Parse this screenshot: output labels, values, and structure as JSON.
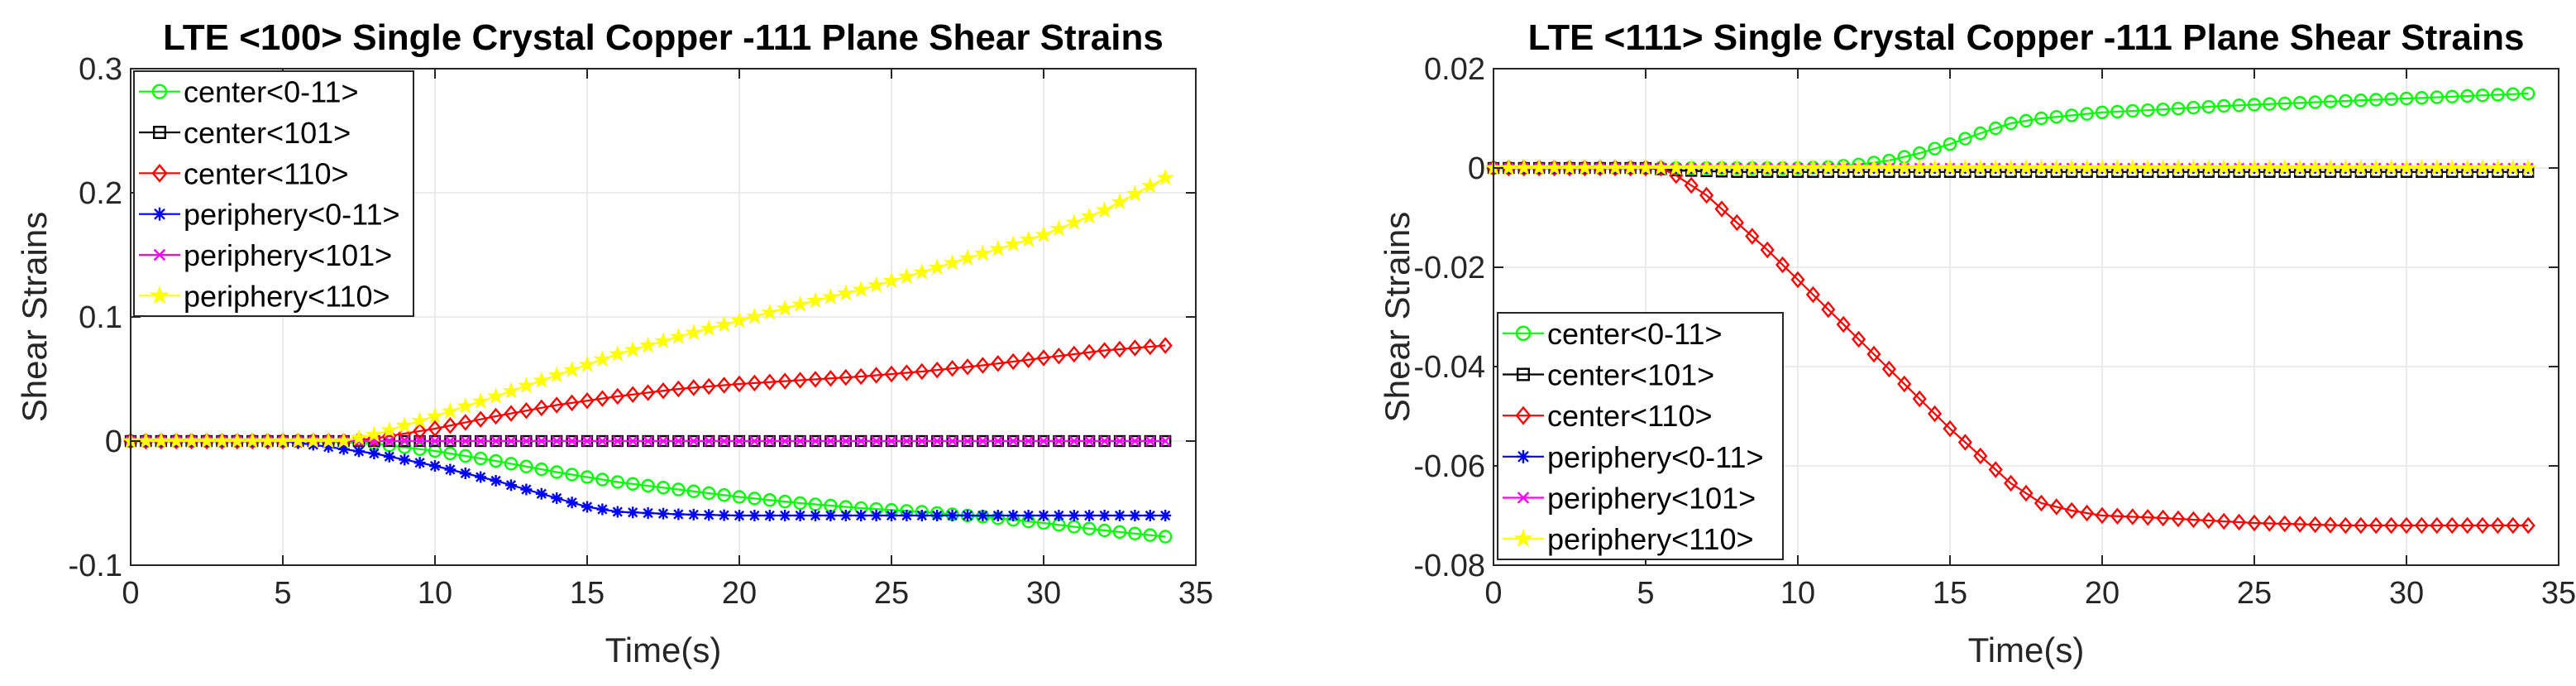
{
  "chart_data": [
    {
      "type": "line",
      "title": "LTE <100> Single Crystal Copper -111 Plane Shear Strains",
      "xlabel": "Time(s)",
      "ylabel": "Shear Strains",
      "xlim": [
        0,
        35
      ],
      "ylim": [
        -0.1,
        0.3
      ],
      "xticks": [
        0,
        5,
        10,
        15,
        20,
        25,
        30,
        35
      ],
      "xtick_labels": [
        "0",
        "5",
        "10",
        "15",
        "20",
        "25",
        "30",
        "35"
      ],
      "yticks": [
        -0.1,
        0,
        0.1,
        0.2,
        0.3
      ],
      "ytick_labels": [
        "-0.1",
        "0",
        "0.1",
        "0.2",
        "0.3"
      ],
      "grid": true,
      "legend_position": "top-left",
      "x": [
        0,
        34
      ],
      "series": [
        {
          "name": "center<0-11>",
          "color": "#00ff00",
          "marker": "circle",
          "points": [
            [
              0,
              0
            ],
            [
              6,
              0
            ],
            [
              8,
              -0.002
            ],
            [
              10,
              -0.008
            ],
            [
              12,
              -0.016
            ],
            [
              14,
              -0.025
            ],
            [
              16,
              -0.033
            ],
            [
              18,
              -0.039
            ],
            [
              20,
              -0.045
            ],
            [
              22,
              -0.05
            ],
            [
              24,
              -0.054
            ],
            [
              26,
              -0.057
            ],
            [
              28,
              -0.061
            ],
            [
              30,
              -0.066
            ],
            [
              32,
              -0.072
            ],
            [
              34,
              -0.077
            ]
          ]
        },
        {
          "name": "center<101>",
          "color": "#000000",
          "marker": "square",
          "points": [
            [
              0,
              0
            ],
            [
              34,
              0
            ]
          ]
        },
        {
          "name": "center<110>",
          "color": "#ff0000",
          "marker": "diamond",
          "points": [
            [
              0,
              0
            ],
            [
              7,
              0
            ],
            [
              8,
              0.002
            ],
            [
              10,
              0.01
            ],
            [
              12,
              0.02
            ],
            [
              14,
              0.029
            ],
            [
              16,
              0.036
            ],
            [
              18,
              0.042
            ],
            [
              20,
              0.046
            ],
            [
              22,
              0.049
            ],
            [
              24,
              0.052
            ],
            [
              26,
              0.056
            ],
            [
              28,
              0.061
            ],
            [
              30,
              0.067
            ],
            [
              32,
              0.073
            ],
            [
              34,
              0.077
            ]
          ]
        },
        {
          "name": "periphery<0-11>",
          "color": "#0000ff",
          "marker": "asterisk",
          "points": [
            [
              0,
              0
            ],
            [
              5,
              0
            ],
            [
              6,
              -0.003
            ],
            [
              8,
              -0.01
            ],
            [
              10,
              -0.02
            ],
            [
              12,
              -0.032
            ],
            [
              14,
              -0.046
            ],
            [
              15,
              -0.053
            ],
            [
              16,
              -0.057
            ],
            [
              18,
              -0.059
            ],
            [
              20,
              -0.06
            ],
            [
              34,
              -0.06
            ]
          ]
        },
        {
          "name": "periphery<101>",
          "color": "#ff00ff",
          "marker": "cross",
          "points": [
            [
              0,
              0
            ],
            [
              34,
              0
            ]
          ]
        },
        {
          "name": "periphery<110>",
          "color": "#ffff00",
          "marker": "star",
          "points": [
            [
              0,
              0
            ],
            [
              7,
              0
            ],
            [
              8,
              0.005
            ],
            [
              10,
              0.02
            ],
            [
              12,
              0.036
            ],
            [
              14,
              0.053
            ],
            [
              16,
              0.07
            ],
            [
              18,
              0.084
            ],
            [
              20,
              0.097
            ],
            [
              22,
              0.11
            ],
            [
              24,
              0.122
            ],
            [
              26,
              0.136
            ],
            [
              28,
              0.151
            ],
            [
              30,
              0.166
            ],
            [
              32,
              0.186
            ],
            [
              34,
              0.212
            ]
          ]
        }
      ]
    },
    {
      "type": "line",
      "title": "LTE <111> Single Crystal Copper -111 Plane Shear Strains",
      "xlabel": "Time(s)",
      "ylabel": "Shear Strains",
      "xlim": [
        0,
        35
      ],
      "ylim": [
        -0.08,
        0.02
      ],
      "xticks": [
        0,
        5,
        10,
        15,
        20,
        25,
        30,
        35
      ],
      "xtick_labels": [
        "0",
        "5",
        "10",
        "15",
        "20",
        "25",
        "30",
        "35"
      ],
      "yticks": [
        -0.08,
        -0.06,
        -0.04,
        -0.02,
        0,
        0.02
      ],
      "ytick_labels": [
        "-0.08",
        "-0.06",
        "-0.04",
        "-0.02",
        "0",
        "0.02"
      ],
      "grid": true,
      "legend_position": "bottom-left",
      "x": [
        0,
        34
      ],
      "series": [
        {
          "name": "center<0-11>",
          "color": "#00ff00",
          "marker": "circle",
          "points": [
            [
              0,
              0
            ],
            [
              10,
              0
            ],
            [
              11,
              0.0002
            ],
            [
              12,
              0.0007
            ],
            [
              13,
              0.0015
            ],
            [
              14,
              0.003
            ],
            [
              15,
              0.0048
            ],
            [
              16,
              0.007
            ],
            [
              17,
              0.009
            ],
            [
              18,
              0.01
            ],
            [
              20,
              0.0112
            ],
            [
              22,
              0.0118
            ],
            [
              24,
              0.0125
            ],
            [
              26,
              0.013
            ],
            [
              28,
              0.0135
            ],
            [
              30,
              0.014
            ],
            [
              32,
              0.0145
            ],
            [
              34,
              0.015
            ]
          ]
        },
        {
          "name": "center<101>",
          "color": "#000000",
          "marker": "square",
          "points": [
            [
              0,
              0
            ],
            [
              5,
              0
            ],
            [
              6,
              -0.0005
            ],
            [
              8,
              -0.0008
            ],
            [
              34,
              -0.0008
            ]
          ]
        },
        {
          "name": "center<110>",
          "color": "#ff0000",
          "marker": "diamond",
          "points": [
            [
              0,
              0
            ],
            [
              5.5,
              0
            ],
            [
              6,
              -0.0015
            ],
            [
              7,
              -0.0055
            ],
            [
              8,
              -0.011
            ],
            [
              9,
              -0.0165
            ],
            [
              10,
              -0.0225
            ],
            [
              11,
              -0.0285
            ],
            [
              12,
              -0.0345
            ],
            [
              13,
              -0.0405
            ],
            [
              14,
              -0.0465
            ],
            [
              15,
              -0.0525
            ],
            [
              16,
              -0.058
            ],
            [
              17,
              -0.0635
            ],
            [
              18,
              -0.0675
            ],
            [
              19,
              -0.069
            ],
            [
              20,
              -0.07
            ],
            [
              22,
              -0.0705
            ],
            [
              25,
              -0.0715
            ],
            [
              28,
              -0.072
            ],
            [
              34,
              -0.072
            ]
          ]
        },
        {
          "name": "periphery<0-11>",
          "color": "#0000ff",
          "marker": "asterisk",
          "points": [
            [
              0,
              0
            ],
            [
              34,
              0
            ]
          ]
        },
        {
          "name": "periphery<101>",
          "color": "#ff00ff",
          "marker": "cross",
          "points": [
            [
              0,
              0
            ],
            [
              34,
              0
            ]
          ]
        },
        {
          "name": "periphery<110>",
          "color": "#ffff00",
          "marker": "star",
          "points": [
            [
              0,
              0
            ],
            [
              34,
              0
            ]
          ]
        }
      ]
    }
  ]
}
